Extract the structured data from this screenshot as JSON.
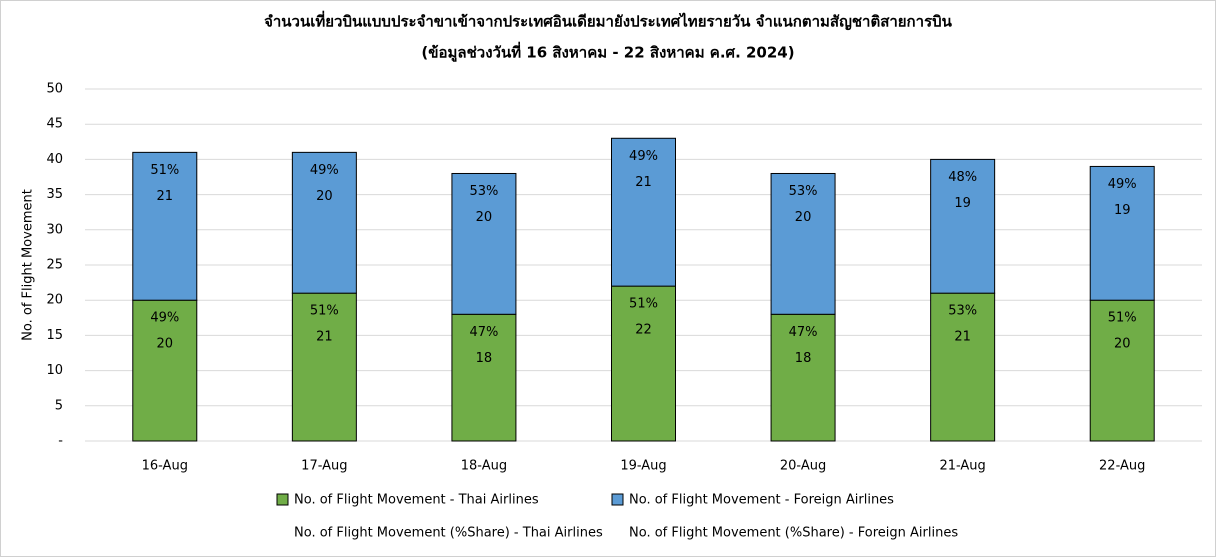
{
  "chart_data": {
    "type": "stacked-bar",
    "title": "จำนวนเที่ยวบินแบบประจำขาเข้าจากประเทศอินเดียมายังประเทศไทยรายวัน  จำแนกตามสัญชาติสายการบิน",
    "subtitle": "(ข้อมูลช่วงวันที่ 16 สิงหาคม - 22 สิงหาคม ค.ศ. 2024)",
    "y_label": "No. of Flight Movement",
    "categories": [
      "16-Aug",
      "17-Aug",
      "18-Aug",
      "19-Aug",
      "20-Aug",
      "21-Aug",
      "22-Aug"
    ],
    "series": [
      {
        "name": "No. of Flight Movement - Thai Airlines",
        "color": "#70ad47",
        "values": [
          20,
          21,
          18,
          22,
          18,
          21,
          20
        ]
      },
      {
        "name": "No. of Flight Movement - Foreign Airlines",
        "color": "#5b9bd5",
        "values": [
          21,
          20,
          20,
          21,
          20,
          19,
          19
        ]
      }
    ],
    "share_series": [
      {
        "name": "No. of Flight Movement (%Share) - Thai Airlines",
        "values": [
          49,
          51,
          47,
          51,
          47,
          53,
          51
        ],
        "value_labels": [
          "49%",
          "51%",
          "47%",
          "51%",
          "47%",
          "53%",
          "51%"
        ]
      },
      {
        "name": "No. of Flight Movement (%Share) - Foreign Airlines",
        "values": [
          51,
          49,
          53,
          49,
          53,
          48,
          49
        ],
        "value_labels": [
          "51%",
          "49%",
          "53%",
          "49%",
          "53%",
          "48%",
          "49%"
        ]
      }
    ],
    "ylim": [
      0,
      50
    ],
    "yticks": [
      {
        "value": 0,
        "label": "-"
      },
      5,
      10,
      15,
      20,
      25,
      30,
      35,
      40,
      45,
      50
    ],
    "grid": true
  }
}
